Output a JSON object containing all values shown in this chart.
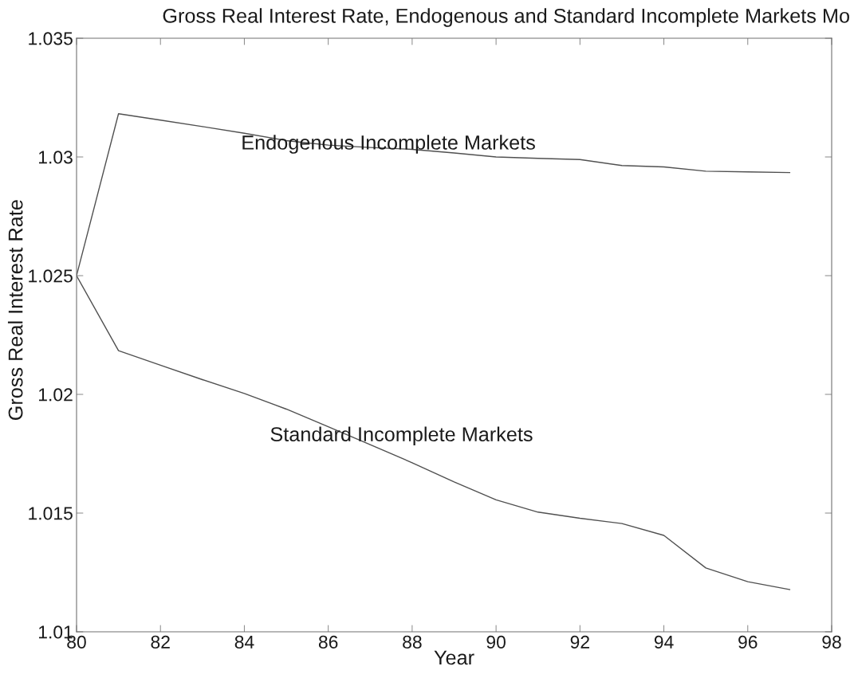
{
  "chart_data": {
    "type": "line",
    "title": "Gross Real Interest Rate, Endogenous and Standard Incomplete Markets Mo",
    "xlabel": "Year",
    "ylabel": "Gross Real Interest Rate",
    "x": [
      80,
      81,
      82,
      83,
      84,
      85,
      86,
      87,
      88,
      89,
      90,
      91,
      92,
      93,
      94,
      95,
      96,
      97
    ],
    "series": [
      {
        "name": "Endogenous Incomplete Markets",
        "color": "#505050",
        "values": [
          1.025,
          1.03182,
          1.03155,
          1.03128,
          1.031,
          1.03069,
          1.0305,
          1.0304,
          1.03032,
          1.03017,
          1.03,
          1.02994,
          1.02989,
          1.02964,
          1.02958,
          1.0294,
          1.02937,
          1.02934
        ]
      },
      {
        "name": "Standard Incomplete Markets",
        "color": "#505050",
        "values": [
          1.025,
          1.02184,
          1.02123,
          1.02062,
          1.02004,
          1.01938,
          1.01864,
          1.01788,
          1.01712,
          1.01631,
          1.01556,
          1.01504,
          1.01478,
          1.01456,
          1.01406,
          1.01269,
          1.01211,
          1.01178
        ]
      }
    ],
    "xlim": [
      80,
      98
    ],
    "xticks": [
      80,
      82,
      84,
      86,
      88,
      90,
      92,
      94,
      96,
      98
    ],
    "ylim": [
      1.01,
      1.035
    ],
    "yticks": [
      1.01,
      1.015,
      1.02,
      1.025,
      1.03,
      1.035
    ],
    "grid": false,
    "legend": false,
    "marker": "none",
    "line_style": "solid"
  }
}
